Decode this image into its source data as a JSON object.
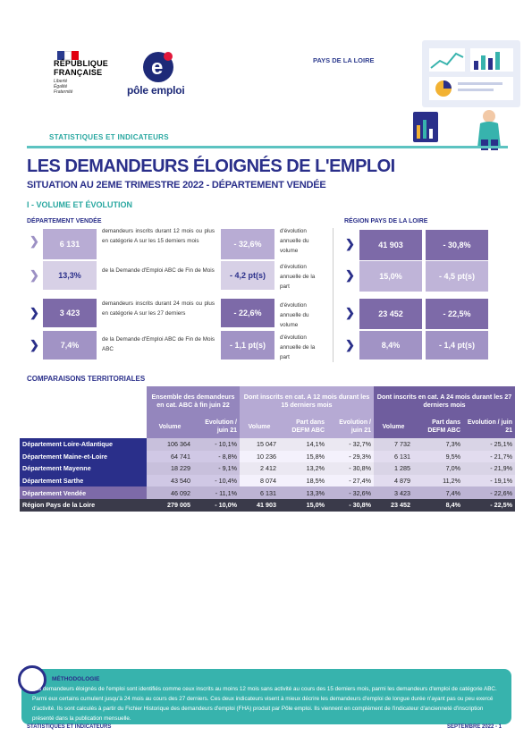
{
  "header": {
    "republic": [
      "RÉPUBLIQUE",
      "FRANÇAISE"
    ],
    "devise": [
      "Liberté",
      "Égalité",
      "Fraternité"
    ],
    "brand": "pôle emploi",
    "region": "PAYS DE LA LOIRE",
    "section_label": "STATISTIQUES ET INDICATEURS"
  },
  "title": "LES DEMANDEURS ÉLOIGNÉS DE L'EMPLOI",
  "subtitle": "SITUATION AU 2EME TRIMESTRE 2022 - DÉPARTEMENT VENDÉE",
  "section1": "I - VOLUME ET ÉVOLUTION",
  "dep_label": "DÉPARTEMENT VENDÉE",
  "reg_label": "RÉGION PAYS DE LA LOIRE",
  "rows": [
    {
      "value": "6 131",
      "desc": "demandeurs inscrits durant 12 mois ou plus en catégorie A sur les 15 derniers mois",
      "evo": "- 32,6%",
      "evo_label": "d'évolution annuelle du volume",
      "reg_value": "41 903",
      "reg_evo": "- 30,8%"
    },
    {
      "value": "13,3%",
      "desc": "de la Demande d'Emploi ABC de Fin de Mois",
      "evo": "- 4,2 pt(s)",
      "evo_label": "d'évolution annuelle de la part",
      "reg_value": "15,0%",
      "reg_evo": "- 4,5 pt(s)"
    },
    {
      "value": "3 423",
      "desc": "demandeurs inscrits durant 24 mois ou plus en catégorie A sur les 27 derniers",
      "evo": "- 22,6%",
      "evo_label": "d'évolution annuelle du volume",
      "reg_value": "23 452",
      "reg_evo": "- 22,5%"
    },
    {
      "value": "7,4%",
      "desc": "de la Demande d'Emploi ABC de Fin de Mois ABC",
      "evo": "- 1,1 pt(s)",
      "evo_label": "d'évolution annuelle de la part",
      "reg_value": "8,4%",
      "reg_evo": "- 1,4 pt(s)"
    }
  ],
  "section2": "COMPARAISONS TERRITORIALES",
  "table": {
    "groups": [
      "Ensemble des demandeurs en cat. ABC à fin juin 22",
      "Dont inscrits en cat. A 12 mois durant les 15 derniers mois",
      "Dont inscrits en cat. A 24 mois durant les 27 derniers mois"
    ],
    "sub": [
      "Volume",
      "Evolution / juin 21",
      "Volume",
      "Part dans DEFM ABC",
      "Evolution / juin 21",
      "Volume",
      "Part dans DEFM ABC",
      "Evolution / juin 21"
    ],
    "rows": [
      [
        "Département Loire-Atlantique",
        "106 364",
        "- 10,1%",
        "15 047",
        "14,1%",
        "- 32,7%",
        "7 732",
        "7,3%",
        "- 25,1%"
      ],
      [
        "Département Maine-et-Loire",
        "64 741",
        "- 8,8%",
        "10 236",
        "15,8%",
        "- 29,3%",
        "6 131",
        "9,5%",
        "- 21,7%"
      ],
      [
        "Département Mayenne",
        "18 229",
        "- 9,1%",
        "2 412",
        "13,2%",
        "- 30,8%",
        "1 285",
        "7,0%",
        "- 21,9%"
      ],
      [
        "Département Sarthe",
        "43 540",
        "- 10,4%",
        "8 074",
        "18,5%",
        "- 27,4%",
        "4 879",
        "11,2%",
        "- 19,1%"
      ],
      [
        "Département Vendée",
        "46 092",
        "- 11,1%",
        "6 131",
        "13,3%",
        "- 32,6%",
        "3 423",
        "7,4%",
        "- 22,6%"
      ],
      [
        "Région Pays de la Loire",
        "279 005",
        "- 10,0%",
        "41 903",
        "15,0%",
        "- 30,8%",
        "23 452",
        "8,4%",
        "- 22,5%"
      ]
    ]
  },
  "methodology": {
    "title": "MÉTHODOLOGIE",
    "text": "Les demandeurs éloignés de l'emploi sont identifiés comme ceux inscrits au moins 12 mois sans activité au cours des 15 derniers mois, parmi les demandeurs d'emploi de catégorie ABC. Parmi eux certains cumulent jusqu'à 24 mois au cours des 27 derniers. Ces deux indicateurs visent à mieux décrire les demandeurs d'emploi de longue durée n'ayant pas ou peu exercé d'activité. Ils sont calculés à partir du Fichier Historique des demandeurs d'emploi (FHA) produit par Pôle emploi. Ils viennent en complément de l'indicateur d'ancienneté d'inscription présenté dans la publication mensuelle."
  },
  "footer": {
    "left": "STATISTIQUES ET INDICATEURS",
    "right": "SEPTEMBRE 2022 - 1"
  },
  "colors": {
    "navy": "#2a2f8a",
    "teal": "#37b3ad",
    "violet_dark": "#7d6aa8",
    "violet_light": "#bfb4d8"
  }
}
